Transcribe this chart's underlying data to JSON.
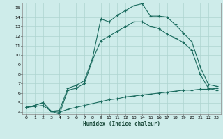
{
  "xlabel": "Humidex (Indice chaleur)",
  "xlim": [
    -0.5,
    23.5
  ],
  "ylim": [
    3.8,
    15.5
  ],
  "xticks": [
    0,
    1,
    2,
    3,
    4,
    5,
    6,
    7,
    8,
    9,
    10,
    11,
    12,
    13,
    14,
    15,
    16,
    17,
    18,
    19,
    20,
    21,
    22,
    23
  ],
  "yticks": [
    4,
    5,
    6,
    7,
    8,
    9,
    10,
    11,
    12,
    13,
    14,
    15
  ],
  "bg_color": "#ceecea",
  "grid_color": "#aed4d0",
  "line_color": "#1a6b5e",
  "line1_x": [
    0,
    1,
    2,
    3,
    4,
    5,
    6,
    7,
    8,
    9,
    10,
    11,
    12,
    13,
    14,
    15,
    16,
    17,
    18,
    19,
    20,
    21,
    22,
    23
  ],
  "line1_y": [
    4.5,
    4.7,
    5.0,
    4.1,
    4.2,
    6.5,
    6.8,
    7.3,
    9.7,
    13.8,
    13.5,
    14.2,
    14.7,
    15.2,
    15.4,
    14.1,
    14.1,
    14.0,
    13.2,
    12.3,
    11.4,
    8.8,
    6.9,
    6.7
  ],
  "line2_x": [
    0,
    1,
    2,
    3,
    4,
    5,
    6,
    7,
    8,
    9,
    10,
    11,
    12,
    13,
    14,
    15,
    16,
    17,
    18,
    19,
    20,
    21,
    22,
    23
  ],
  "line2_y": [
    4.5,
    4.7,
    5.0,
    4.1,
    3.8,
    6.3,
    6.5,
    7.0,
    9.5,
    11.5,
    12.0,
    12.5,
    13.0,
    13.5,
    13.5,
    13.0,
    12.8,
    12.2,
    11.8,
    11.3,
    10.5,
    8.0,
    6.5,
    6.3
  ],
  "line3_x": [
    0,
    1,
    2,
    3,
    4,
    5,
    6,
    7,
    8,
    9,
    10,
    11,
    12,
    13,
    14,
    15,
    16,
    17,
    18,
    19,
    20,
    21,
    22,
    23
  ],
  "line3_y": [
    4.5,
    4.6,
    4.7,
    4.1,
    4.0,
    4.3,
    4.5,
    4.7,
    4.9,
    5.1,
    5.3,
    5.4,
    5.6,
    5.7,
    5.8,
    5.9,
    6.0,
    6.1,
    6.2,
    6.3,
    6.3,
    6.4,
    6.4,
    6.5
  ]
}
